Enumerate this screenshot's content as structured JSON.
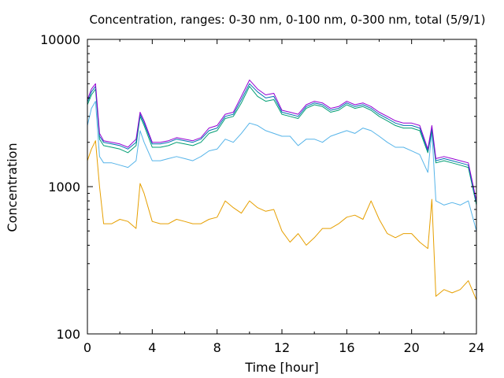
{
  "chart_data": {
    "type": "line",
    "title": "Concentration, ranges: 0-30 nm, 0-100 nm, 0-300 nm, total (5/9/1)",
    "xlabel": "Time [hour]",
    "ylabel": "Concentration",
    "xlim": [
      0,
      24
    ],
    "ylim": [
      100,
      10000
    ],
    "yscale": "log",
    "grid": false,
    "x_ticks": [
      0,
      4,
      8,
      12,
      16,
      20,
      24
    ],
    "y_ticks": [
      100,
      1000,
      10000
    ],
    "y_tick_labels": [
      "100",
      "1000",
      "10000"
    ],
    "series": [
      {
        "color": "#e69f00",
        "x": [
          0,
          0.25,
          0.5,
          0.75,
          1,
          1.5,
          2,
          2.5,
          3,
          3.25,
          3.5,
          4,
          4.5,
          5,
          5.5,
          6,
          6.5,
          7,
          7.5,
          8,
          8.5,
          9,
          9.5,
          10,
          10.5,
          11,
          11.5,
          12,
          12.5,
          13,
          13.5,
          14,
          14.5,
          15,
          15.5,
          16,
          16.5,
          17,
          17.5,
          18,
          18.5,
          19,
          19.5,
          20,
          20.5,
          21,
          21.25,
          21.5,
          22,
          22.5,
          23,
          23.5,
          24
        ],
        "y": [
          1500,
          1800,
          2050,
          1000,
          560,
          560,
          600,
          580,
          520,
          1050,
          900,
          580,
          560,
          560,
          600,
          580,
          560,
          560,
          600,
          620,
          800,
          720,
          660,
          800,
          720,
          680,
          700,
          500,
          420,
          480,
          400,
          450,
          520,
          520,
          560,
          620,
          640,
          600,
          800,
          600,
          480,
          450,
          480,
          480,
          420,
          380,
          820,
          180,
          200,
          190,
          200,
          230,
          170
        ]
      },
      {
        "color": "#56b4e9",
        "x": [
          0,
          0.25,
          0.5,
          0.75,
          1,
          1.5,
          2,
          2.5,
          3,
          3.25,
          3.5,
          4,
          4.5,
          5,
          5.5,
          6,
          6.5,
          7,
          7.5,
          8,
          8.5,
          9,
          9.5,
          10,
          10.5,
          11,
          11.5,
          12,
          12.5,
          13,
          13.5,
          14,
          14.5,
          15,
          15.5,
          16,
          16.5,
          17,
          17.5,
          18,
          18.5,
          19,
          19.5,
          20,
          20.5,
          21,
          21.25,
          21.5,
          22,
          22.5,
          23,
          23.5,
          24
        ],
        "y": [
          2600,
          3400,
          3800,
          1600,
          1450,
          1450,
          1400,
          1350,
          1500,
          2400,
          2000,
          1500,
          1500,
          1550,
          1600,
          1550,
          1500,
          1600,
          1750,
          1800,
          2100,
          2000,
          2300,
          2700,
          2600,
          2400,
          2300,
          2200,
          2200,
          1900,
          2100,
          2100,
          2000,
          2200,
          2300,
          2400,
          2300,
          2500,
          2400,
          2200,
          2000,
          1850,
          1850,
          1750,
          1650,
          1250,
          2400,
          800,
          750,
          780,
          750,
          800,
          500
        ]
      },
      {
        "color": "#009e73",
        "x": [
          0,
          0.25,
          0.5,
          0.75,
          1,
          1.5,
          2,
          2.5,
          3,
          3.25,
          3.5,
          4,
          4.5,
          5,
          5.5,
          6,
          6.5,
          7,
          7.5,
          8,
          8.5,
          9,
          9.5,
          10,
          10.5,
          11,
          11.5,
          12,
          12.5,
          13,
          13.5,
          14,
          14.5,
          15,
          15.5,
          16,
          16.5,
          17,
          17.5,
          18,
          18.5,
          19,
          19.5,
          20,
          20.5,
          21,
          21.25,
          21.5,
          22,
          22.5,
          23,
          23.5,
          24
        ],
        "y": [
          3600,
          4200,
          4600,
          2100,
          1900,
          1850,
          1800,
          1700,
          1900,
          3000,
          2600,
          1850,
          1850,
          1900,
          2000,
          1950,
          1900,
          2000,
          2300,
          2400,
          2900,
          3000,
          3700,
          4800,
          4100,
          3800,
          3900,
          3100,
          3000,
          2900,
          3400,
          3600,
          3500,
          3200,
          3300,
          3600,
          3400,
          3500,
          3300,
          3000,
          2800,
          2600,
          2500,
          2500,
          2400,
          1700,
          2400,
          1450,
          1500,
          1450,
          1400,
          1350,
          750
        ]
      },
      {
        "color": "#0072b2",
        "x": [
          0,
          0.25,
          0.5,
          0.75,
          1,
          1.5,
          2,
          2.5,
          3,
          3.25,
          3.5,
          4,
          4.5,
          5,
          5.5,
          6,
          6.5,
          7,
          7.5,
          8,
          8.5,
          9,
          9.5,
          10,
          10.5,
          11,
          11.5,
          12,
          12.5,
          13,
          13.5,
          14,
          14.5,
          15,
          15.5,
          16,
          16.5,
          17,
          17.5,
          18,
          18.5,
          19,
          19.5,
          20,
          20.5,
          21,
          21.25,
          21.5,
          22,
          22.5,
          23,
          23.5,
          24
        ],
        "y": [
          3750,
          4400,
          4800,
          2200,
          2000,
          1950,
          1900,
          1800,
          2000,
          3100,
          2700,
          1950,
          1950,
          2000,
          2100,
          2050,
          2000,
          2100,
          2400,
          2500,
          3000,
          3100,
          3900,
          5000,
          4400,
          4000,
          4100,
          3200,
          3100,
          3000,
          3500,
          3700,
          3600,
          3300,
          3400,
          3700,
          3500,
          3600,
          3400,
          3100,
          2900,
          2700,
          2600,
          2600,
          2500,
          1750,
          2500,
          1500,
          1550,
          1500,
          1450,
          1400,
          780
        ]
      },
      {
        "color": "#9400d3",
        "x": [
          0,
          0.25,
          0.5,
          0.75,
          1,
          1.5,
          2,
          2.5,
          3,
          3.25,
          3.5,
          4,
          4.5,
          5,
          5.5,
          6,
          6.5,
          7,
          7.5,
          8,
          8.5,
          9,
          9.5,
          10,
          10.5,
          11,
          11.5,
          12,
          12.5,
          13,
          13.5,
          14,
          14.5,
          15,
          15.5,
          16,
          16.5,
          17,
          17.5,
          18,
          18.5,
          19,
          19.5,
          20,
          20.5,
          21,
          21.25,
          21.5,
          22,
          22.5,
          23,
          23.5,
          24
        ],
        "y": [
          3900,
          4600,
          5000,
          2300,
          2050,
          2000,
          1950,
          1850,
          2100,
          3200,
          2800,
          2000,
          2000,
          2050,
          2150,
          2100,
          2050,
          2150,
          2500,
          2600,
          3100,
          3200,
          4100,
          5300,
          4600,
          4200,
          4300,
          3300,
          3200,
          3100,
          3600,
          3800,
          3700,
          3400,
          3500,
          3800,
          3600,
          3700,
          3500,
          3200,
          3000,
          2800,
          2700,
          2700,
          2600,
          1800,
          2600,
          1550,
          1600,
          1550,
          1500,
          1450,
          800
        ]
      }
    ]
  }
}
